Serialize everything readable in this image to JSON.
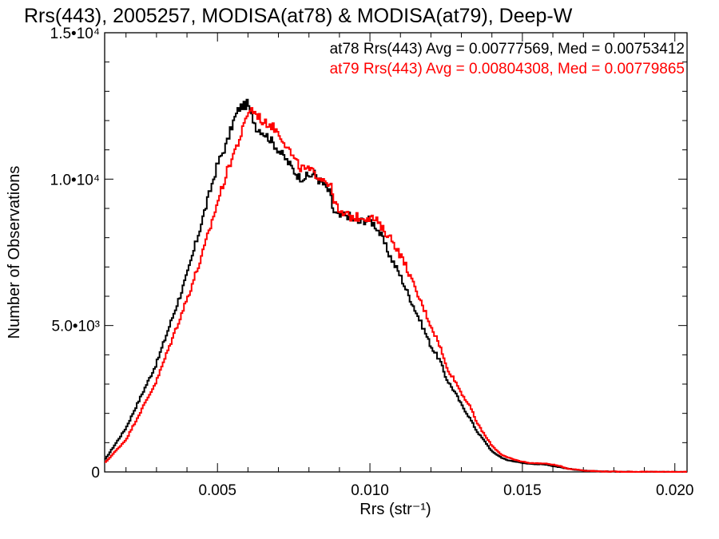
{
  "chart_data": {
    "type": "line",
    "title": "Rrs(443), 2005257, MODISA(at78) & MODISA(at79), Deep-W",
    "xlabel": "Rrs (str⁻¹)",
    "ylabel": "Number of Observations",
    "xlim": [
      0.0013,
      0.0204
    ],
    "ylim": [
      0,
      15000
    ],
    "xticks": [
      {
        "value": 0.005,
        "label": "0.005"
      },
      {
        "value": 0.01,
        "label": "0.010"
      },
      {
        "value": 0.015,
        "label": "0.015"
      },
      {
        "value": 0.02,
        "label": "0.020"
      }
    ],
    "yticks": [
      {
        "value": 0,
        "label": "0"
      },
      {
        "value": 5000,
        "label": "5.0•10³"
      },
      {
        "value": 10000,
        "label": "1.0•10⁴"
      },
      {
        "value": 15000,
        "label": "1.5•10⁴"
      }
    ],
    "annotations": [
      {
        "text": "at78 Rrs(443) Avg = 0.00777569, Med = 0.00753412",
        "color": "#000000"
      },
      {
        "text": "at79 Rrs(443) Avg = 0.00804308, Med = 0.00779865",
        "color": "#ff0000"
      }
    ],
    "bin_width": 5e-05,
    "series": [
      {
        "color": "#000000",
        "x": [
          0.0013,
          0.002,
          0.0025,
          0.003,
          0.0035,
          0.004,
          0.0045,
          0.005,
          0.0053,
          0.0055,
          0.0057,
          0.0058,
          0.0059,
          0.006,
          0.0061,
          0.0062,
          0.0063,
          0.0064,
          0.0065,
          0.0067,
          0.007,
          0.0073,
          0.0075,
          0.0077,
          0.008,
          0.0082,
          0.0083,
          0.0085,
          0.0087,
          0.0088,
          0.009,
          0.0092,
          0.0094,
          0.0096,
          0.0098,
          0.01,
          0.0102,
          0.0104,
          0.0106,
          0.0108,
          0.011,
          0.0112,
          0.0115,
          0.0118,
          0.012,
          0.0123,
          0.0125,
          0.0128,
          0.013,
          0.0133,
          0.0135,
          0.0138,
          0.014,
          0.0143,
          0.0145,
          0.0148,
          0.015,
          0.0153,
          0.0155,
          0.0158,
          0.016,
          0.0163,
          0.0165,
          0.0168,
          0.017,
          0.0175,
          0.018,
          0.019,
          0.0204
        ],
        "y": [
          400,
          1500,
          2600,
          3700,
          5200,
          6700,
          8600,
          10500,
          11200,
          11900,
          12400,
          12500,
          12500,
          12600,
          12200,
          12000,
          11700,
          11700,
          11600,
          11400,
          11000,
          10600,
          10300,
          10050,
          10100,
          10200,
          10000,
          9800,
          9500,
          8900,
          8700,
          8800,
          8700,
          8500,
          8600,
          8600,
          8400,
          8000,
          7500,
          7100,
          6700,
          6200,
          5500,
          4800,
          4300,
          3800,
          3200,
          2700,
          2300,
          1800,
          1400,
          1000,
          700,
          500,
          400,
          350,
          300,
          280,
          260,
          250,
          200,
          150,
          110,
          70,
          40,
          20,
          10,
          5,
          0
        ]
      },
      {
        "color": "#ff0000",
        "x": [
          0.0013,
          0.002,
          0.0025,
          0.003,
          0.0035,
          0.004,
          0.0045,
          0.005,
          0.0053,
          0.0055,
          0.0057,
          0.0058,
          0.0059,
          0.006,
          0.0061,
          0.0062,
          0.0063,
          0.0064,
          0.0065,
          0.0067,
          0.007,
          0.0073,
          0.0075,
          0.0077,
          0.008,
          0.0082,
          0.0083,
          0.0085,
          0.0087,
          0.0088,
          0.009,
          0.0092,
          0.0094,
          0.0096,
          0.0098,
          0.01,
          0.0102,
          0.0104,
          0.0106,
          0.0108,
          0.011,
          0.0112,
          0.0115,
          0.0118,
          0.012,
          0.0123,
          0.0125,
          0.0128,
          0.013,
          0.0133,
          0.0135,
          0.0138,
          0.014,
          0.0143,
          0.0145,
          0.0148,
          0.015,
          0.0153,
          0.0155,
          0.0158,
          0.016,
          0.0163,
          0.0165,
          0.0168,
          0.017,
          0.0175,
          0.018,
          0.019,
          0.0204
        ],
        "y": [
          300,
          1100,
          2100,
          3100,
          4500,
          5900,
          7400,
          9200,
          10200,
          10800,
          11300,
          11600,
          11900,
          12300,
          12400,
          12300,
          12200,
          12100,
          11900,
          11900,
          11600,
          11100,
          10700,
          10400,
          10300,
          10200,
          10100,
          10000,
          9800,
          9400,
          8800,
          8800,
          8700,
          8700,
          8700,
          8700,
          8600,
          8300,
          8100,
          7800,
          7400,
          7000,
          6200,
          5500,
          5000,
          4300,
          3600,
          3100,
          2700,
          2200,
          1700,
          1200,
          900,
          600,
          500,
          400,
          350,
          300,
          300,
          280,
          250,
          180,
          110,
          80,
          50,
          20,
          10,
          5,
          0
        ]
      }
    ]
  }
}
